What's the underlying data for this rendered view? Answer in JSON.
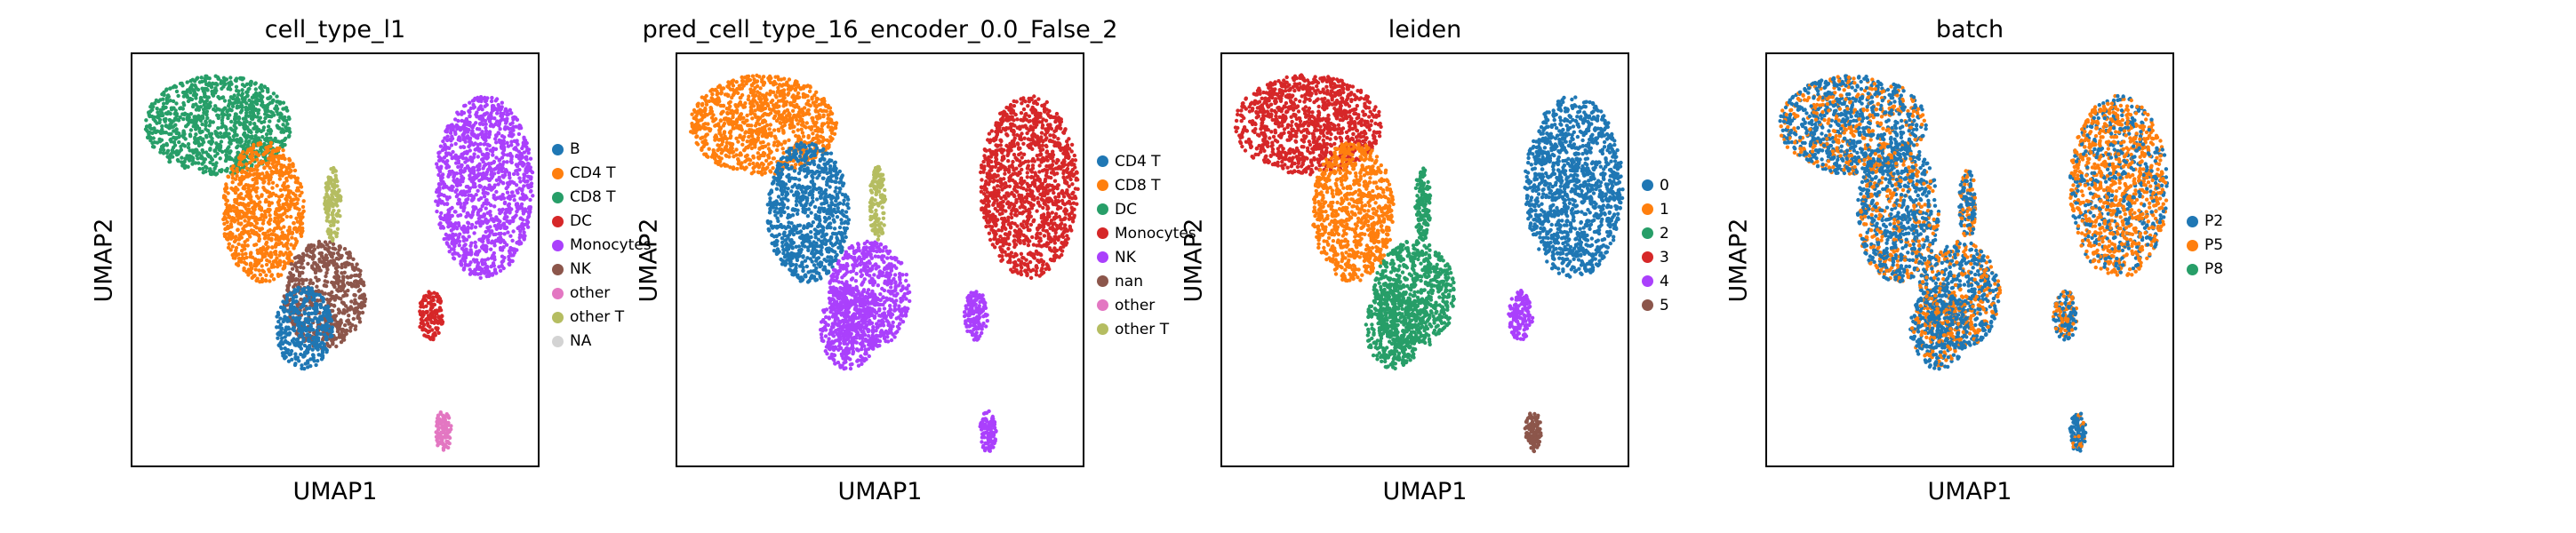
{
  "chart_data": [
    {
      "type": "scatter",
      "title": "cell_type_l1",
      "xlabel": "UMAP1",
      "ylabel": "UMAP2",
      "grid": false,
      "legend_placement": "right",
      "legend": [
        {
          "name": "B",
          "color": "#1f77b4"
        },
        {
          "name": "CD4 T",
          "color": "#ff7f0e"
        },
        {
          "name": "CD8 T",
          "color": "#279e68"
        },
        {
          "name": "DC",
          "color": "#d62728"
        },
        {
          "name": "Monocytes",
          "color": "#aa40fc"
        },
        {
          "name": "NK",
          "color": "#8c564b"
        },
        {
          "name": "other",
          "color": "#e377c2"
        },
        {
          "name": "other T",
          "color": "#b5bd61"
        },
        {
          "name": "NA",
          "color": "#d3d3d3"
        }
      ],
      "clusters": [
        {
          "region": "top-left",
          "category": "CD8 T"
        },
        {
          "region": "upper-middle",
          "category": "CD4 T"
        },
        {
          "region": "center",
          "category": "NK"
        },
        {
          "region": "center-bottom",
          "category": "B"
        },
        {
          "region": "center-spur",
          "category": "other T"
        },
        {
          "region": "right",
          "category": "Monocytes"
        },
        {
          "region": "small-mid-right",
          "category": "DC"
        },
        {
          "region": "small-bottom-right",
          "category": "other"
        }
      ]
    },
    {
      "type": "scatter",
      "title": "pred_cell_type_16_encoder_0.0_False_2",
      "xlabel": "UMAP1",
      "ylabel": "UMAP2",
      "grid": false,
      "legend_placement": "right",
      "legend": [
        {
          "name": "CD4 T",
          "color": "#1f77b4"
        },
        {
          "name": "CD8 T",
          "color": "#ff7f0e"
        },
        {
          "name": "DC",
          "color": "#279e68"
        },
        {
          "name": "Monocytes",
          "color": "#d62728"
        },
        {
          "name": "NK",
          "color": "#aa40fc"
        },
        {
          "name": "nan",
          "color": "#8c564b"
        },
        {
          "name": "other",
          "color": "#e377c2"
        },
        {
          "name": "other T",
          "color": "#b5bd61"
        }
      ],
      "clusters": [
        {
          "region": "top-left",
          "category": "CD8 T"
        },
        {
          "region": "upper-middle",
          "category": "CD4 T"
        },
        {
          "region": "center",
          "category": "NK"
        },
        {
          "region": "center-bottom",
          "category": "NK"
        },
        {
          "region": "center-spur",
          "category": "other T"
        },
        {
          "region": "right",
          "category": "Monocytes"
        },
        {
          "region": "small-mid-right",
          "category": "NK"
        },
        {
          "region": "small-bottom-right",
          "category": "NK"
        }
      ]
    },
    {
      "type": "scatter",
      "title": "leiden",
      "xlabel": "UMAP1",
      "ylabel": "UMAP2",
      "grid": false,
      "legend_placement": "right",
      "legend": [
        {
          "name": "0",
          "color": "#1f77b4"
        },
        {
          "name": "1",
          "color": "#ff7f0e"
        },
        {
          "name": "2",
          "color": "#279e68"
        },
        {
          "name": "3",
          "color": "#d62728"
        },
        {
          "name": "4",
          "color": "#aa40fc"
        },
        {
          "name": "5",
          "color": "#8c564b"
        }
      ],
      "clusters": [
        {
          "region": "top-left",
          "category": "3"
        },
        {
          "region": "upper-middle",
          "category": "1"
        },
        {
          "region": "center",
          "category": "2"
        },
        {
          "region": "center-bottom",
          "category": "2"
        },
        {
          "region": "center-spur",
          "category": "2"
        },
        {
          "region": "right",
          "category": "0"
        },
        {
          "region": "small-mid-right",
          "category": "4"
        },
        {
          "region": "small-bottom-right",
          "category": "5"
        }
      ]
    },
    {
      "type": "scatter",
      "title": "batch",
      "xlabel": "UMAP1",
      "ylabel": "UMAP2",
      "grid": false,
      "legend_placement": "right",
      "legend": [
        {
          "name": "P2",
          "color": "#1f77b4"
        },
        {
          "name": "P5",
          "color": "#ff7f0e"
        },
        {
          "name": "P8",
          "color": "#279e68"
        }
      ],
      "clusters": [
        {
          "region": "top-left",
          "category": "P2",
          "mixed_with": "P5"
        },
        {
          "region": "upper-middle",
          "category": "P2",
          "mixed_with": "P5"
        },
        {
          "region": "center",
          "category": "P2",
          "mixed_with": "P5"
        },
        {
          "region": "center-bottom",
          "category": "P2",
          "mixed_with": "P5"
        },
        {
          "region": "center-spur",
          "category": "P2",
          "mixed_with": "P5"
        },
        {
          "region": "right",
          "category": "P5",
          "mixed_with": "P2"
        },
        {
          "region": "small-mid-right",
          "category": "P2",
          "mixed_with": "P5"
        },
        {
          "region": "small-bottom-right",
          "category": "P2",
          "mixed_with": "P5"
        }
      ]
    }
  ]
}
